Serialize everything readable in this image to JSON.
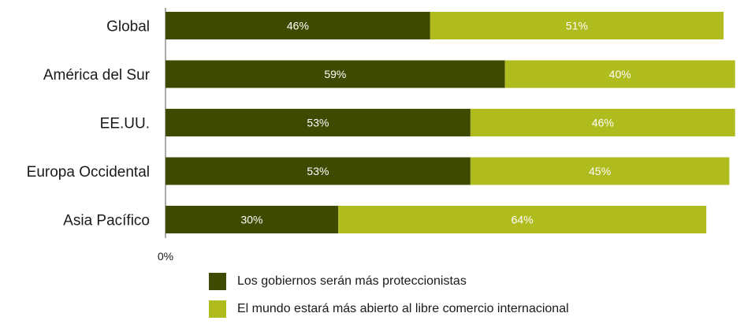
{
  "chart_data": {
    "type": "bar",
    "orientation": "horizontal",
    "stacked": true,
    "categories": [
      "Global",
      "América del Sur",
      "EE.UU.",
      "Europa Occidental",
      "Asia Pacífico"
    ],
    "series": [
      {
        "name": "Los gobiernos serán más proteccionistas",
        "color": "#3d4a00",
        "values": [
          46,
          59,
          53,
          53,
          30
        ],
        "labels": [
          "46%",
          "59%",
          "53%",
          "53%",
          "30%"
        ]
      },
      {
        "name": "El mundo estará más abierto al libre comercio internacional",
        "color": "#b0bb1e",
        "values": [
          51,
          40,
          46,
          45,
          64
        ],
        "labels": [
          "51%",
          "40%",
          "46%",
          "45%",
          "64%"
        ]
      }
    ],
    "xlim": [
      0,
      100
    ],
    "x_tick_label": "0%",
    "grid": false,
    "legend_position": "bottom"
  }
}
